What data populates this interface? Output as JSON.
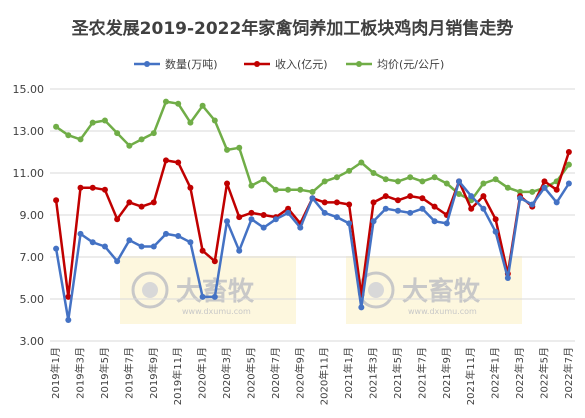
{
  "chart_data": {
    "type": "line",
    "title": "圣农发展2019-2022年家禽饲养加工板块鸡肉月销售走势",
    "xlabel": "",
    "ylabel": "",
    "ylim": [
      3.0,
      15.0
    ],
    "yticks": [
      "3.00",
      "5.00",
      "7.00",
      "9.00",
      "11.00",
      "13.00",
      "15.00"
    ],
    "grid": true,
    "legend_position": "top",
    "x": [
      "2019年1月",
      "2019年2月",
      "2019年3月",
      "2019年4月",
      "2019年5月",
      "2019年6月",
      "2019年7月",
      "2019年8月",
      "2019年9月",
      "2019年10月",
      "2019年11月",
      "2019年12月",
      "2020年1月",
      "2020年2月",
      "2020年3月",
      "2020年4月",
      "2020年5月",
      "2020年6月",
      "2020年7月",
      "2020年8月",
      "2020年9月",
      "2020年10月",
      "2020年11月",
      "2020年12月",
      "2021年1月",
      "2021年2月",
      "2021年3月",
      "2021年4月",
      "2021年5月",
      "2021年6月",
      "2021年7月",
      "2021年8月",
      "2021年9月",
      "2021年10月",
      "2021年11月",
      "2021年12月",
      "2022年1月",
      "2022年2月",
      "2022年3月",
      "2022年4月",
      "2022年5月",
      "2022年6月",
      "2022年7月"
    ],
    "series": [
      {
        "name": "数量(万吨)",
        "color": "#4472c4",
        "values": [
          7.4,
          4.0,
          8.1,
          7.7,
          7.5,
          6.8,
          7.8,
          7.5,
          7.5,
          8.1,
          8.0,
          7.7,
          5.1,
          5.1,
          8.7,
          7.3,
          8.8,
          8.4,
          8.8,
          9.1,
          8.4,
          9.8,
          9.1,
          8.9,
          8.6,
          4.6,
          8.7,
          9.3,
          9.2,
          9.1,
          9.3,
          8.7,
          8.6,
          10.6,
          9.9,
          9.3,
          8.2,
          6.0,
          9.8,
          9.5,
          10.3,
          9.6,
          10.5
        ]
      },
      {
        "name": "收入(亿元)",
        "color": "#c00000",
        "values": [
          9.7,
          5.1,
          10.3,
          10.3,
          10.2,
          8.8,
          9.6,
          9.4,
          9.6,
          11.6,
          11.5,
          10.3,
          7.3,
          6.8,
          10.5,
          8.9,
          9.1,
          9.0,
          8.9,
          9.3,
          8.6,
          9.8,
          9.6,
          9.6,
          9.5,
          5.2,
          9.6,
          9.9,
          9.7,
          9.9,
          9.8,
          9.4,
          9.0,
          10.6,
          9.3,
          9.9,
          8.8,
          6.2,
          9.9,
          9.4,
          10.6,
          10.2,
          12.0
        ]
      },
      {
        "name": "均价(元/公斤)",
        "color": "#70ad47",
        "values": [
          13.2,
          12.8,
          12.6,
          13.4,
          13.5,
          12.9,
          12.3,
          12.6,
          12.9,
          14.4,
          14.3,
          13.4,
          14.2,
          13.5,
          12.1,
          12.2,
          10.4,
          10.7,
          10.2,
          10.2,
          10.2,
          10.1,
          10.6,
          10.8,
          11.1,
          11.5,
          11.0,
          10.7,
          10.6,
          10.8,
          10.6,
          10.8,
          10.5,
          10.0,
          9.7,
          10.5,
          10.7,
          10.3,
          10.1,
          10.1,
          10.3,
          10.6,
          11.4
        ]
      }
    ]
  },
  "watermark": {
    "brand": "大畜牧",
    "url": "www.dxumu.com"
  }
}
